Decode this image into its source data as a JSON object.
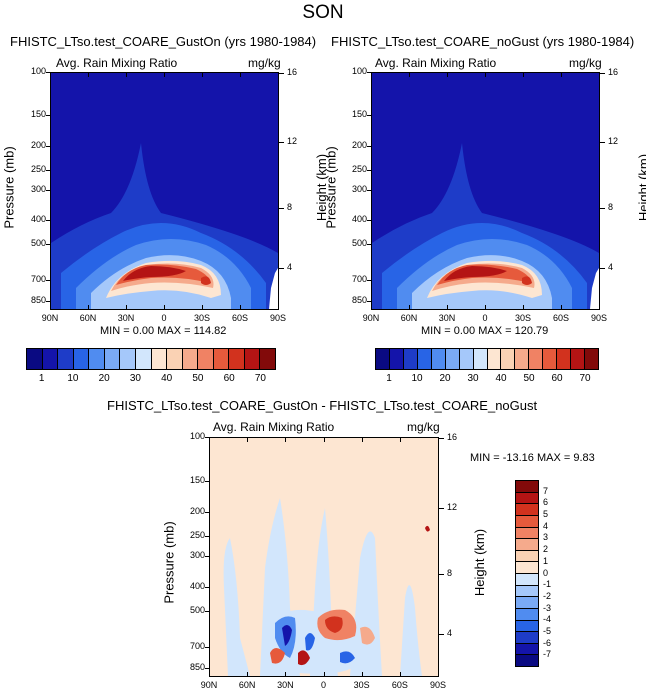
{
  "title": "SON",
  "panels": [
    {
      "title": "FHISTC_LTso.test_COARE_GustOn (yrs 1980-1984)",
      "variable": "Avg. Rain Mixing Ratio",
      "units": "mg/kg",
      "stats": {
        "min_label": "MIN =",
        "min": "0.00",
        "max_label": "MAX =",
        "max": "114.82"
      }
    },
    {
      "title": "FHISTC_LTso.test_COARE_noGust (yrs 1980-1984)",
      "variable": "Avg. Rain Mixing Ratio",
      "units": "mg/kg",
      "stats": {
        "min_label": "MIN =",
        "min": "0.00",
        "max_label": "MAX =",
        "max": "120.79"
      }
    },
    {
      "title": "FHISTC_LTso.test_COARE_GustOn - FHISTC_LTso.test_COARE_noGust",
      "variable": "Avg. Rain Mixing Ratio",
      "units": "mg/kg",
      "stats": {
        "min_label": "MIN =",
        "min": "-13.16",
        "max_label": "MAX =",
        "max": "9.83"
      }
    }
  ],
  "axes": {
    "ylabel": "Pressure (mb)",
    "y2label": "Height (km)",
    "x_ticks": [
      "90N",
      "60N",
      "30N",
      "0",
      "30S",
      "60S",
      "90S"
    ],
    "y_ticks": [
      "100",
      "150",
      "200",
      "250",
      "300",
      "400",
      "500",
      "700",
      "850"
    ],
    "y2_ticks": [
      "16",
      "12",
      "8",
      "4"
    ]
  },
  "colorbars": {
    "top_labels": [
      "1",
      "10",
      "20",
      "30",
      "40",
      "50",
      "60",
      "70"
    ],
    "top_colors": [
      "#0a0a82",
      "#1414aa",
      "#1e3cc8",
      "#2864e6",
      "#508cf0",
      "#7aaaf5",
      "#a5c8fa",
      "#d2e6fc",
      "#fde6d2",
      "#fad2b4",
      "#f5aa8c",
      "#f08264",
      "#e65a3c",
      "#d2321e",
      "#b41414",
      "#820a0a"
    ],
    "diff_labels": [
      "7",
      "6",
      "5",
      "4",
      "3",
      "2",
      "1",
      "0",
      "-1",
      "-2",
      "-3",
      "-4",
      "-5",
      "-6",
      "-7"
    ],
    "diff_colors": [
      "#820a0a",
      "#b41414",
      "#d2321e",
      "#e65a3c",
      "#f08264",
      "#f5aa8c",
      "#fad2b4",
      "#fde6d2",
      "#d2e6fc",
      "#a5c8fa",
      "#7aaaf5",
      "#508cf0",
      "#2864e6",
      "#1e3cc8",
      "#1414aa",
      "#0a0a82"
    ]
  },
  "chart_data": [
    {
      "type": "heatmap",
      "title": "FHISTC_LTso.test_COARE_GustOn (yrs 1980-1984)",
      "subtitle": "Avg. Rain Mixing Ratio",
      "xlabel": "",
      "ylabel": "Pressure (mb)",
      "y2label": "Height (km)",
      "units": "mg/kg",
      "x_range": [
        "90N",
        "90S"
      ],
      "ylim_mb": [
        100,
        925
      ],
      "y_scale": "log",
      "min": 0.0,
      "max": 114.82,
      "colorbar_levels": [
        1,
        10,
        20,
        30,
        40,
        50,
        60,
        70
      ]
    },
    {
      "type": "heatmap",
      "title": "FHISTC_LTso.test_COARE_noGust (yrs 1980-1984)",
      "subtitle": "Avg. Rain Mixing Ratio",
      "xlabel": "",
      "ylabel": "Pressure (mb)",
      "y2label": "Height (km)",
      "units": "mg/kg",
      "x_range": [
        "90N",
        "90S"
      ],
      "ylim_mb": [
        100,
        925
      ],
      "y_scale": "log",
      "min": 0.0,
      "max": 120.79,
      "colorbar_levels": [
        1,
        10,
        20,
        30,
        40,
        50,
        60,
        70
      ]
    },
    {
      "type": "heatmap",
      "title": "FHISTC_LTso.test_COARE_GustOn - FHISTC_LTso.test_COARE_noGust",
      "subtitle": "Avg. Rain Mixing Ratio",
      "xlabel": "",
      "ylabel": "Pressure (mb)",
      "y2label": "Height (km)",
      "units": "mg/kg",
      "x_range": [
        "90N",
        "90S"
      ],
      "ylim_mb": [
        100,
        925
      ],
      "y_scale": "log",
      "min": -13.16,
      "max": 9.83,
      "colorbar_levels": [
        -7,
        -6,
        -5,
        -4,
        -3,
        -2,
        -1,
        0,
        1,
        2,
        3,
        4,
        5,
        6,
        7
      ]
    }
  ]
}
